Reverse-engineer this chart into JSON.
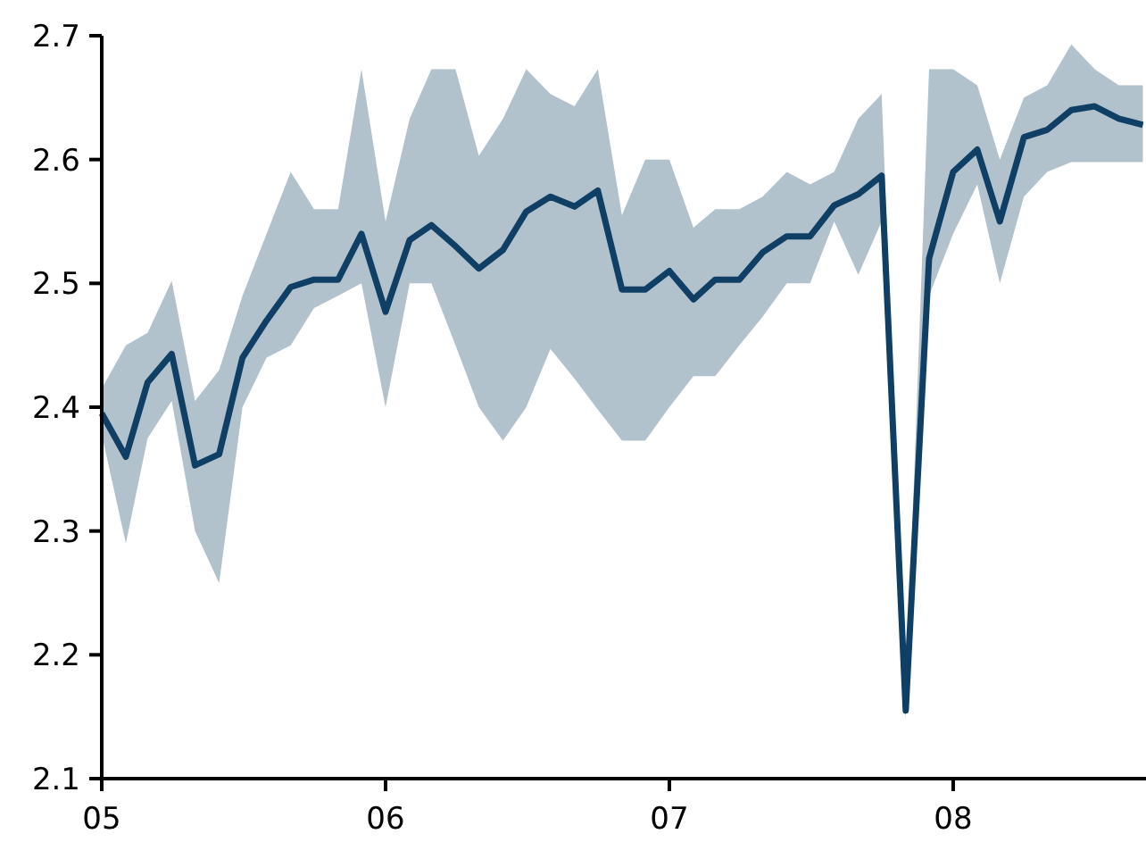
{
  "chart_data": {
    "type": "line",
    "x": [
      "2005-01",
      "2005-02",
      "2005-03",
      "2005-04",
      "2005-05",
      "2005-06",
      "2005-07",
      "2005-08",
      "2005-09",
      "2005-10",
      "2005-11",
      "2005-12",
      "2006-01",
      "2006-02",
      "2006-03",
      "2006-04",
      "2006-05",
      "2006-06",
      "2006-07",
      "2006-08",
      "2006-09",
      "2006-10",
      "2006-11",
      "2006-12",
      "2007-01",
      "2007-02",
      "2007-03",
      "2007-04",
      "2007-05",
      "2007-06",
      "2007-07",
      "2007-08",
      "2007-09",
      "2007-10",
      "2007-11",
      "2007-12",
      "2008-01",
      "2008-02",
      "2008-03",
      "2008-04",
      "2008-05",
      "2008-06",
      "2008-07",
      "2008-08",
      "2008-09"
    ],
    "series": [
      {
        "color": "#0f3f64",
        "values": [
          2.395,
          2.36,
          2.42,
          2.443,
          2.353,
          2.362,
          2.44,
          2.47,
          2.497,
          2.503,
          2.503,
          2.54,
          2.477,
          2.535,
          2.547,
          2.53,
          2.512,
          2.527,
          2.558,
          2.57,
          2.562,
          2.575,
          2.495,
          2.495,
          2.51,
          2.487,
          2.503,
          2.503,
          2.525,
          2.538,
          2.538,
          2.563,
          2.572,
          2.587,
          2.155,
          2.52,
          2.59,
          2.608,
          2.55,
          2.618,
          2.624,
          2.64,
          2.643,
          2.633,
          2.628
        ],
        "upper": [
          2.415,
          2.45,
          2.46,
          2.502,
          2.405,
          2.43,
          2.49,
          2.54,
          2.59,
          2.56,
          2.56,
          2.673,
          2.55,
          2.633,
          2.673,
          2.673,
          2.603,
          2.633,
          2.673,
          2.653,
          2.643,
          2.673,
          2.555,
          2.6,
          2.6,
          2.545,
          2.56,
          2.56,
          2.57,
          2.59,
          2.58,
          2.59,
          2.633,
          2.653,
          2.16,
          2.673,
          2.673,
          2.66,
          2.6,
          2.65,
          2.66,
          2.693,
          2.673,
          2.66,
          2.66
        ],
        "lower": [
          2.378,
          2.29,
          2.375,
          2.405,
          2.3,
          2.258,
          2.4,
          2.44,
          2.45,
          2.48,
          2.49,
          2.5,
          2.4,
          2.5,
          2.5,
          2.45,
          2.4,
          2.373,
          2.4,
          2.447,
          2.423,
          2.398,
          2.373,
          2.373,
          2.4,
          2.425,
          2.425,
          2.45,
          2.473,
          2.5,
          2.5,
          2.55,
          2.507,
          2.55,
          2.148,
          2.49,
          2.54,
          2.58,
          2.5,
          2.57,
          2.59,
          2.598,
          2.598,
          2.598,
          2.598
        ]
      }
    ],
    "xlim": [
      "2005-01",
      "2008-09-05"
    ],
    "xticks": [
      {
        "value": "2005-01",
        "label": "05"
      },
      {
        "value": "2006-01",
        "label": "06"
      },
      {
        "value": "2007-01",
        "label": "07"
      },
      {
        "value": "2008-01",
        "label": "08"
      }
    ],
    "ylim": [
      2.1,
      2.7
    ],
    "yticks": [
      2.1,
      2.2,
      2.3,
      2.4,
      2.5,
      2.6,
      2.7
    ],
    "grid": false,
    "marker": "none",
    "line_style": "solid"
  }
}
